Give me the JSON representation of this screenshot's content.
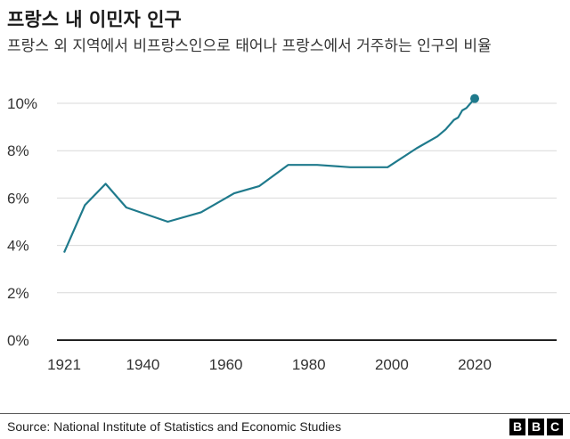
{
  "header": {
    "title": "프랑스 내 이민자 인구",
    "subtitle": "프랑스 외 지역에서 비프랑스인으로 태어나 프랑스에서 거주하는 인구의 비율"
  },
  "footer": {
    "source": "Source: National Institute of Statistics and Economic Studies",
    "logo": [
      "B",
      "B",
      "C"
    ]
  },
  "colors": {
    "line": "#1f7a8c",
    "grid": "#d9d9d9",
    "baseline": "#222222"
  },
  "chart_data": {
    "type": "line",
    "title": "프랑스 내 이민자 인구",
    "subtitle": "프랑스 외 지역에서 비프랑스인으로 태어나 프랑스에서 거주하는 인구의 비율",
    "xlabel": "",
    "ylabel": "",
    "xlim": [
      1921,
      2040
    ],
    "ylim": [
      0,
      10
    ],
    "x_ticks": [
      1921,
      1940,
      1960,
      1980,
      2000,
      2020
    ],
    "y_ticks": [
      0,
      2,
      4,
      6,
      8,
      10
    ],
    "y_tick_labels": [
      "0%",
      "2%",
      "4%",
      "6%",
      "8%",
      "10%"
    ],
    "grid": true,
    "legend": "none",
    "series": [
      {
        "x": [
          1921,
          1926,
          1931,
          1936,
          1946,
          1954,
          1962,
          1968,
          1975,
          1982,
          1990,
          1999,
          2006,
          2011,
          2013,
          2015,
          2016,
          2017,
          2018,
          2019,
          2020
        ],
        "y": [
          3.7,
          5.7,
          6.6,
          5.6,
          5.0,
          5.4,
          6.2,
          6.5,
          7.4,
          7.4,
          7.3,
          7.3,
          8.1,
          8.6,
          8.9,
          9.3,
          9.4,
          9.7,
          9.8,
          10.0,
          10.2
        ],
        "end_marker": true
      }
    ]
  }
}
